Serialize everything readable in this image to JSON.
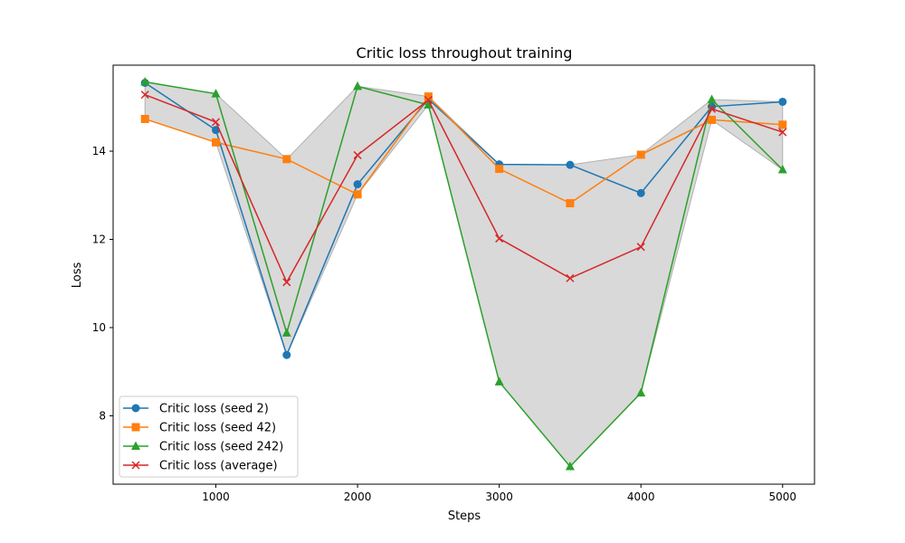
{
  "chart_data": {
    "type": "line",
    "title": "Critic loss throughout training",
    "xlabel": "Steps",
    "ylabel": "Loss",
    "xlim": [
      275,
      5225
    ],
    "ylim": [
      6.45,
      15.95
    ],
    "xticks": [
      1000,
      2000,
      3000,
      4000,
      5000
    ],
    "yticks": [
      8,
      10,
      12,
      14
    ],
    "grid": false,
    "legend_position": "lower-left",
    "x": [
      500,
      1000,
      1500,
      2000,
      2500,
      3000,
      3500,
      4000,
      4500,
      5000
    ],
    "series": [
      {
        "name": "Critic loss (seed 2)",
        "color": "#1f77b4",
        "marker": "circle",
        "values": [
          15.55,
          14.48,
          9.38,
          13.25,
          15.18,
          13.7,
          13.69,
          13.05,
          15.01,
          15.12
        ]
      },
      {
        "name": "Critic loss (seed 42)",
        "color": "#ff7f0e",
        "marker": "square",
        "values": [
          14.73,
          14.2,
          13.82,
          13.02,
          15.24,
          13.6,
          12.82,
          13.92,
          14.71,
          14.6
        ]
      },
      {
        "name": "Critic loss (seed 242)",
        "color": "#2ca02c",
        "marker": "triangle",
        "values": [
          15.57,
          15.3,
          9.88,
          15.47,
          15.05,
          8.77,
          6.85,
          8.52,
          15.17,
          13.58
        ]
      },
      {
        "name": "Critic loss (average)",
        "color": "#d62728",
        "marker": "x",
        "values": [
          15.28,
          14.66,
          11.03,
          13.91,
          15.16,
          12.02,
          11.12,
          11.83,
          14.96,
          14.43
        ]
      }
    ],
    "band": {
      "color": "#bfbfbf",
      "opacity": 0.6
    }
  }
}
